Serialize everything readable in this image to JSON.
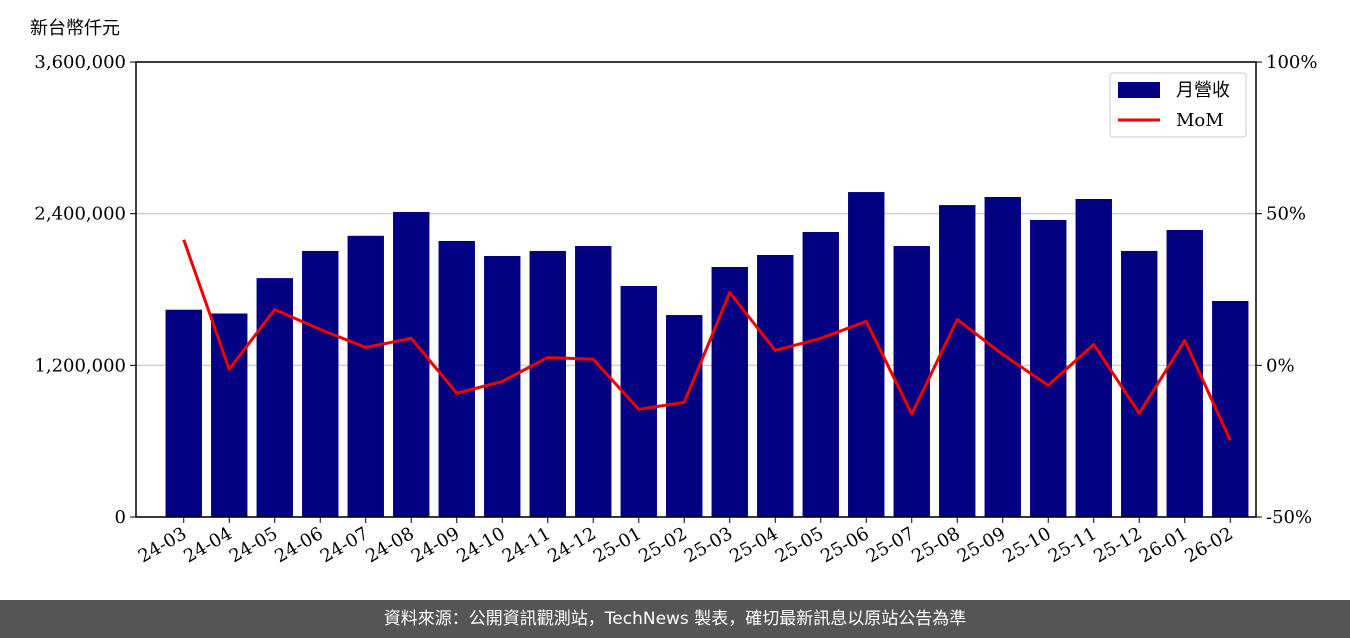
{
  "chart_data": {
    "type": "bar",
    "y_label": "新台幣仟元",
    "categories": [
      "24-03",
      "24-04",
      "24-05",
      "24-06",
      "24-07",
      "24-08",
      "24-09",
      "24-10",
      "24-11",
      "24-12",
      "25-01",
      "25-02",
      "25-03",
      "25-04",
      "25-05",
      "25-06",
      "25-07",
      "25-08",
      "25-09",
      "25-10",
      "25-11",
      "25-12",
      "26-01",
      "26-02"
    ],
    "series": [
      {
        "name": "月營收",
        "type": "bar",
        "color": "#000080",
        "values": [
          1640000,
          1610000,
          1890000,
          2105000,
          2225000,
          2413000,
          2184000,
          2065000,
          2105000,
          2144000,
          1828000,
          1598000,
          1978000,
          2073000,
          2255000,
          2571000,
          2144000,
          2468000,
          2532000,
          2350000,
          2516000,
          2105000,
          2271000,
          1709000
        ]
      },
      {
        "name": "MoM",
        "type": "line",
        "color": "#ee0000",
        "axis": "y2",
        "values": [
          41.4,
          -1.3,
          18.4,
          11.8,
          5.9,
          8.9,
          -9.2,
          -5.3,
          2.6,
          2.0,
          -14.5,
          -12.2,
          24.0,
          4.9,
          8.9,
          14.5,
          -16.1,
          15.1,
          3.6,
          -6.6,
          6.9,
          -15.8,
          8.2,
          -24.7
        ]
      }
    ],
    "ylim": [
      0,
      3600000
    ],
    "yticks": [
      {
        "value": 0,
        "label": "0"
      },
      {
        "value": 1200000,
        "label": "1,200,000"
      },
      {
        "value": 2400000,
        "label": "2,400,000"
      },
      {
        "value": 3600000,
        "label": "3,600,000"
      }
    ],
    "y2lim": [
      -50,
      100
    ],
    "y2ticks": [
      {
        "value": -50,
        "label": "-50%"
      },
      {
        "value": 0,
        "label": "0%"
      },
      {
        "value": 50,
        "label": "50%"
      },
      {
        "value": 100,
        "label": "100%"
      }
    ],
    "grid": true,
    "legend": "upper right"
  },
  "source": "資料來源：公開資訊觀測站，TechNews 製表，確切最新訊息以原站公告為準"
}
